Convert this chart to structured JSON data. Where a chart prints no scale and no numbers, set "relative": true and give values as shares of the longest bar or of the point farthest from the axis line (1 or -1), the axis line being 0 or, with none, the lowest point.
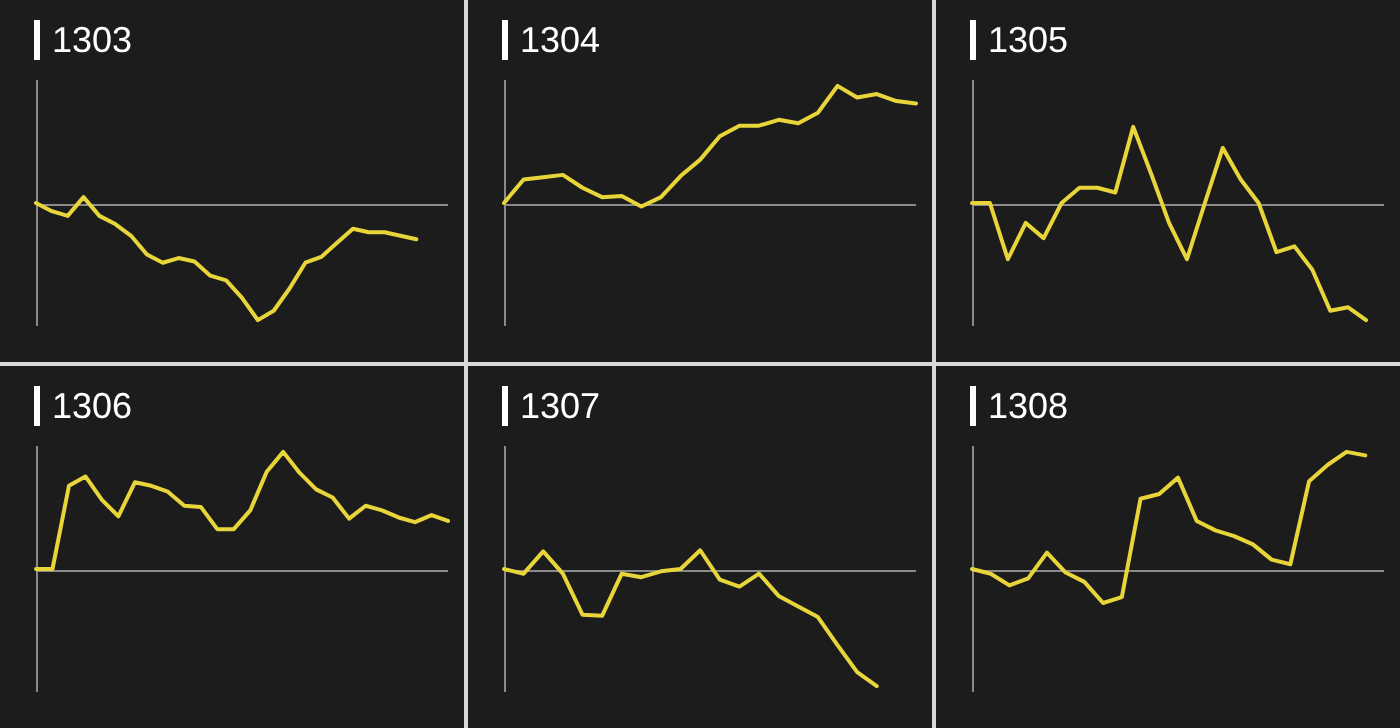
{
  "chart_data": [
    {
      "type": "line",
      "title": "1303",
      "relative": true,
      "color": "#e8d53a",
      "categories": [
        null,
        null,
        null,
        null,
        null,
        null,
        null,
        null,
        null,
        null,
        null,
        null,
        null,
        null,
        null,
        null,
        null,
        null,
        null,
        null,
        null,
        null,
        null,
        null,
        null,
        null,
        null
      ],
      "values": [
        0,
        -0.07,
        -0.11,
        0.05,
        -0.11,
        -0.18,
        -0.28,
        -0.44,
        -0.51,
        -0.47,
        -0.5,
        -0.62,
        -0.66,
        -0.81,
        -1,
        -0.92,
        -0.73,
        -0.51,
        -0.46,
        -0.34,
        -0.22,
        -0.25,
        -0.25,
        -0.28,
        -0.31,
        null,
        null
      ]
    },
    {
      "type": "line",
      "title": "1304",
      "relative": true,
      "color": "#e8d53a",
      "categories": [
        null,
        null,
        null,
        null,
        null,
        null,
        null,
        null,
        null,
        null,
        null,
        null,
        null,
        null,
        null,
        null,
        null,
        null,
        null,
        null,
        null,
        null
      ],
      "values": [
        0,
        0.2,
        0.22,
        0.24,
        0.13,
        0.05,
        0.06,
        -0.03,
        0.05,
        0.23,
        0.37,
        0.57,
        0.66,
        0.66,
        0.71,
        0.68,
        0.77,
        1,
        0.9,
        0.93,
        0.87,
        0.85
      ]
    },
    {
      "type": "line",
      "title": "1305",
      "relative": true,
      "color": "#e8d53a",
      "categories": [
        null,
        null,
        null,
        null,
        null,
        null,
        null,
        null,
        null,
        null,
        null,
        null,
        null,
        null,
        null,
        null,
        null,
        null,
        null,
        null,
        null,
        null,
        null,
        null
      ],
      "values": [
        0,
        0,
        -0.48,
        -0.17,
        -0.3,
        0,
        0.13,
        0.13,
        0.09,
        0.65,
        0.25,
        -0.17,
        -0.48,
        0,
        0.47,
        0.2,
        0,
        -0.42,
        -0.37,
        -0.57,
        -0.92,
        -0.89,
        -1,
        null
      ]
    },
    {
      "type": "line",
      "title": "1306",
      "relative": true,
      "color": "#e8d53a",
      "categories": [
        null,
        null,
        null,
        null,
        null,
        null,
        null,
        null,
        null,
        null,
        null,
        null,
        null,
        null,
        null,
        null,
        null,
        null,
        null,
        null,
        null,
        null,
        null,
        null,
        null,
        null
      ],
      "values": [
        0,
        0,
        0.71,
        0.79,
        0.59,
        0.45,
        0.74,
        0.71,
        0.66,
        0.54,
        0.53,
        0.34,
        0.34,
        0.5,
        0.83,
        1,
        0.82,
        0.68,
        0.61,
        0.43,
        0.54,
        0.5,
        0.44,
        0.4,
        0.46,
        0.41
      ]
    },
    {
      "type": "line",
      "title": "1307",
      "relative": true,
      "color": "#e8d53a",
      "categories": [
        null,
        null,
        null,
        null,
        null,
        null,
        null,
        null,
        null,
        null,
        null,
        null,
        null,
        null,
        null,
        null,
        null,
        null,
        null,
        null,
        null,
        null
      ],
      "values": [
        0,
        -0.04,
        0.15,
        -0.04,
        -0.39,
        -0.4,
        -0.04,
        -0.07,
        -0.02,
        0,
        0.16,
        -0.09,
        -0.15,
        -0.04,
        -0.23,
        -0.32,
        -0.41,
        -0.65,
        -0.88,
        -1,
        null,
        null
      ]
    },
    {
      "type": "line",
      "title": "1308",
      "relative": true,
      "color": "#e8d53a",
      "categories": [
        null,
        null,
        null,
        null,
        null,
        null,
        null,
        null,
        null,
        null,
        null,
        null,
        null,
        null,
        null,
        null,
        null,
        null,
        null,
        null,
        null,
        null,
        null
      ],
      "values": [
        0,
        -0.04,
        -0.14,
        -0.08,
        0.14,
        -0.03,
        -0.11,
        -0.29,
        -0.24,
        0.6,
        0.64,
        0.78,
        0.41,
        0.33,
        0.28,
        0.21,
        0.08,
        0.04,
        0.75,
        0.89,
        1,
        0.97,
        null
      ]
    }
  ]
}
